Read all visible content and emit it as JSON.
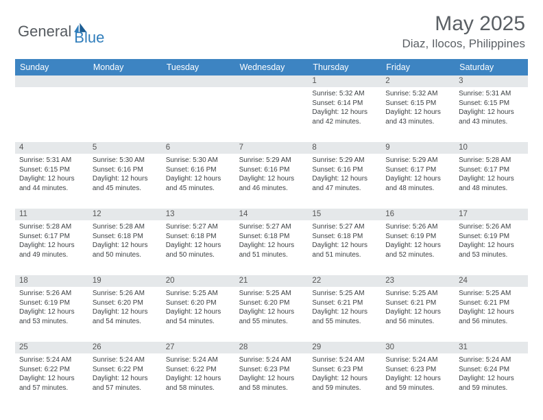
{
  "logo": {
    "text1": "General",
    "text2": "Blue"
  },
  "title": "May 2025",
  "location": "Diaz, Ilocos, Philippines",
  "dayNames": [
    "Sunday",
    "Monday",
    "Tuesday",
    "Wednesday",
    "Thursday",
    "Friday",
    "Saturday"
  ],
  "colors": {
    "headerBg": "#3d84c2",
    "rowBg": "#e5e8ea",
    "logoBlue": "#2f7dbb",
    "textGray": "#5a5f64"
  },
  "weeks": [
    {
      "nums": [
        "",
        "",
        "",
        "",
        "1",
        "2",
        "3"
      ],
      "cells": [
        null,
        null,
        null,
        null,
        {
          "sunrise": "5:32 AM",
          "sunset": "6:14 PM",
          "dh": "12",
          "dm": "42"
        },
        {
          "sunrise": "5:32 AM",
          "sunset": "6:15 PM",
          "dh": "12",
          "dm": "43"
        },
        {
          "sunrise": "5:31 AM",
          "sunset": "6:15 PM",
          "dh": "12",
          "dm": "43"
        }
      ]
    },
    {
      "nums": [
        "4",
        "5",
        "6",
        "7",
        "8",
        "9",
        "10"
      ],
      "cells": [
        {
          "sunrise": "5:31 AM",
          "sunset": "6:15 PM",
          "dh": "12",
          "dm": "44"
        },
        {
          "sunrise": "5:30 AM",
          "sunset": "6:16 PM",
          "dh": "12",
          "dm": "45"
        },
        {
          "sunrise": "5:30 AM",
          "sunset": "6:16 PM",
          "dh": "12",
          "dm": "45"
        },
        {
          "sunrise": "5:29 AM",
          "sunset": "6:16 PM",
          "dh": "12",
          "dm": "46"
        },
        {
          "sunrise": "5:29 AM",
          "sunset": "6:16 PM",
          "dh": "12",
          "dm": "47"
        },
        {
          "sunrise": "5:29 AM",
          "sunset": "6:17 PM",
          "dh": "12",
          "dm": "48"
        },
        {
          "sunrise": "5:28 AM",
          "sunset": "6:17 PM",
          "dh": "12",
          "dm": "48"
        }
      ]
    },
    {
      "nums": [
        "11",
        "12",
        "13",
        "14",
        "15",
        "16",
        "17"
      ],
      "cells": [
        {
          "sunrise": "5:28 AM",
          "sunset": "6:17 PM",
          "dh": "12",
          "dm": "49"
        },
        {
          "sunrise": "5:28 AM",
          "sunset": "6:18 PM",
          "dh": "12",
          "dm": "50"
        },
        {
          "sunrise": "5:27 AM",
          "sunset": "6:18 PM",
          "dh": "12",
          "dm": "50"
        },
        {
          "sunrise": "5:27 AM",
          "sunset": "6:18 PM",
          "dh": "12",
          "dm": "51"
        },
        {
          "sunrise": "5:27 AM",
          "sunset": "6:18 PM",
          "dh": "12",
          "dm": "51"
        },
        {
          "sunrise": "5:26 AM",
          "sunset": "6:19 PM",
          "dh": "12",
          "dm": "52"
        },
        {
          "sunrise": "5:26 AM",
          "sunset": "6:19 PM",
          "dh": "12",
          "dm": "53"
        }
      ]
    },
    {
      "nums": [
        "18",
        "19",
        "20",
        "21",
        "22",
        "23",
        "24"
      ],
      "cells": [
        {
          "sunrise": "5:26 AM",
          "sunset": "6:19 PM",
          "dh": "12",
          "dm": "53"
        },
        {
          "sunrise": "5:26 AM",
          "sunset": "6:20 PM",
          "dh": "12",
          "dm": "54"
        },
        {
          "sunrise": "5:25 AM",
          "sunset": "6:20 PM",
          "dh": "12",
          "dm": "54"
        },
        {
          "sunrise": "5:25 AM",
          "sunset": "6:20 PM",
          "dh": "12",
          "dm": "55"
        },
        {
          "sunrise": "5:25 AM",
          "sunset": "6:21 PM",
          "dh": "12",
          "dm": "55"
        },
        {
          "sunrise": "5:25 AM",
          "sunset": "6:21 PM",
          "dh": "12",
          "dm": "56"
        },
        {
          "sunrise": "5:25 AM",
          "sunset": "6:21 PM",
          "dh": "12",
          "dm": "56"
        }
      ]
    },
    {
      "nums": [
        "25",
        "26",
        "27",
        "28",
        "29",
        "30",
        "31"
      ],
      "cells": [
        {
          "sunrise": "5:24 AM",
          "sunset": "6:22 PM",
          "dh": "12",
          "dm": "57"
        },
        {
          "sunrise": "5:24 AM",
          "sunset": "6:22 PM",
          "dh": "12",
          "dm": "57"
        },
        {
          "sunrise": "5:24 AM",
          "sunset": "6:22 PM",
          "dh": "12",
          "dm": "58"
        },
        {
          "sunrise": "5:24 AM",
          "sunset": "6:23 PM",
          "dh": "12",
          "dm": "58"
        },
        {
          "sunrise": "5:24 AM",
          "sunset": "6:23 PM",
          "dh": "12",
          "dm": "59"
        },
        {
          "sunrise": "5:24 AM",
          "sunset": "6:23 PM",
          "dh": "12",
          "dm": "59"
        },
        {
          "sunrise": "5:24 AM",
          "sunset": "6:24 PM",
          "dh": "12",
          "dm": "59"
        }
      ]
    }
  ],
  "labels": {
    "sunrise": "Sunrise:",
    "sunset": "Sunset:",
    "daylight": "Daylight:",
    "hours": "hours",
    "and": "and",
    "minutes": "minutes."
  }
}
